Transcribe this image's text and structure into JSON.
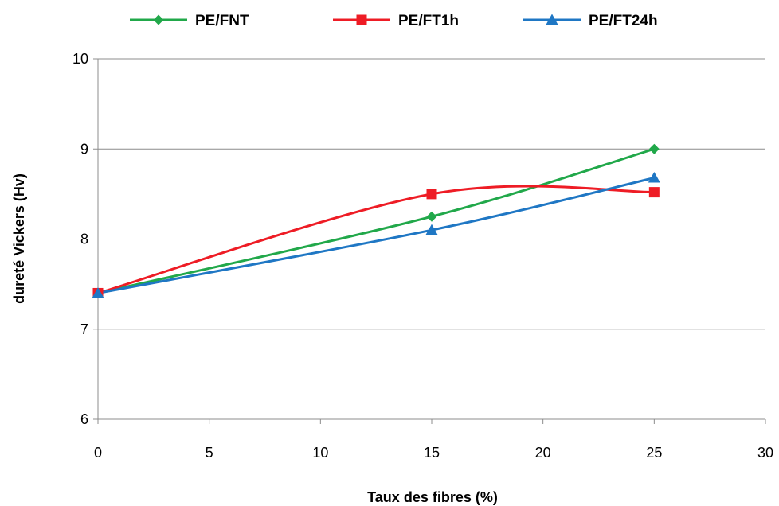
{
  "chart_data": {
    "type": "line",
    "title": "",
    "xlabel": "Taux des fibres (%)",
    "ylabel": "dureté Vickers (Hv)",
    "xlim": [
      0,
      30
    ],
    "ylim": [
      6,
      10
    ],
    "x_ticks": [
      "0",
      "5",
      "10",
      "15",
      "20",
      "25",
      "30"
    ],
    "y_ticks": [
      "6",
      "7",
      "8",
      "9",
      "10"
    ],
    "grid": "horizontal",
    "legend_position": "top",
    "smooth": true,
    "series": [
      {
        "name": "PE/FNT",
        "color": "#21a84a",
        "marker": "diamond",
        "x": [
          0,
          15,
          25
        ],
        "y": [
          7.4,
          8.25,
          9.0
        ]
      },
      {
        "name": "PE/FT1h",
        "color": "#ee1c25",
        "marker": "square",
        "x": [
          0,
          15,
          25
        ],
        "y": [
          7.4,
          8.5,
          8.52
        ]
      },
      {
        "name": "PE/FT24h",
        "color": "#1f77c4",
        "marker": "triangle",
        "x": [
          0,
          15,
          25
        ],
        "y": [
          7.4,
          8.1,
          8.68
        ]
      }
    ]
  }
}
